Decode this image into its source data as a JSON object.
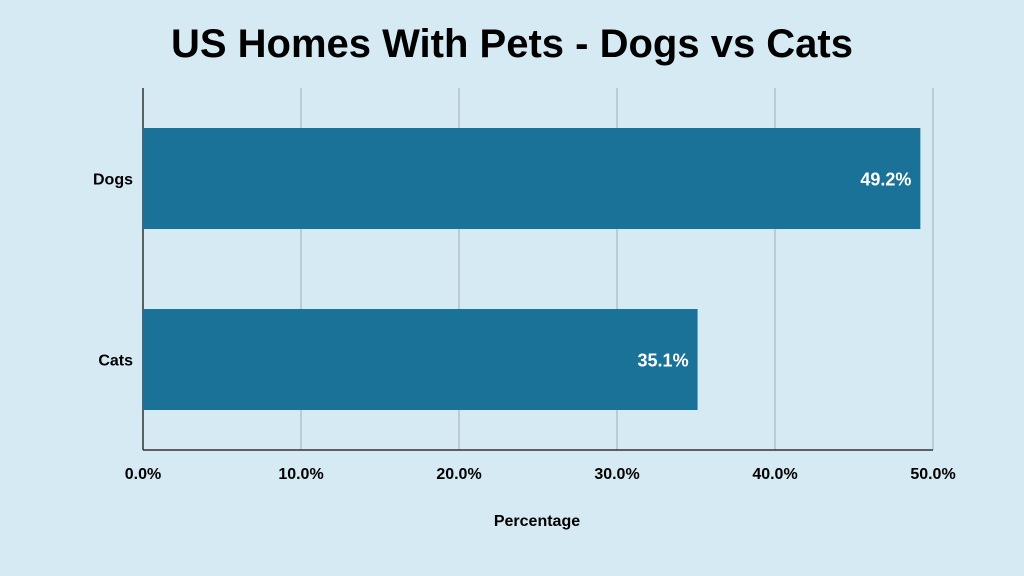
{
  "chart_data": {
    "type": "bar",
    "orientation": "horizontal",
    "title": "US Homes With Pets - Dogs vs Cats",
    "xlabel": "Percentage",
    "ylabel": "",
    "categories": [
      "Dogs",
      "Cats"
    ],
    "values": [
      49.2,
      35.1
    ],
    "data_labels": [
      "49.2%",
      "35.1%"
    ],
    "xlim": [
      0,
      50
    ],
    "x_ticks": [
      0,
      10,
      20,
      30,
      40,
      50
    ],
    "x_tick_labels": [
      "0.0%",
      "10.0%",
      "20.0%",
      "30.0%",
      "40.0%",
      "50.0%"
    ],
    "grid": true,
    "legend": "none",
    "colors": {
      "bar": "#1b7298",
      "background": "#d6eaf4",
      "grid": "#a9b8c0",
      "axis": "#333333"
    }
  }
}
